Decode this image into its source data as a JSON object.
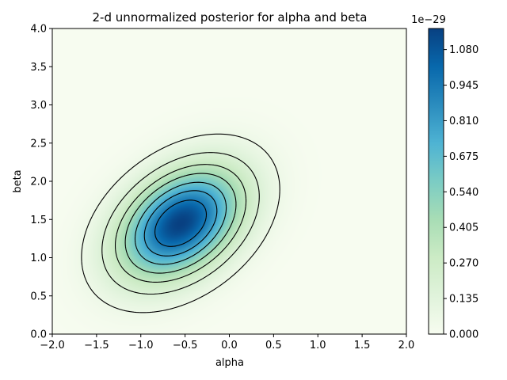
{
  "chart_data": {
    "type": "heatmap",
    "title": "2-d unnormalized posterior for alpha and beta",
    "xlabel": "alpha",
    "ylabel": "beta",
    "xlim": [
      -2.0,
      2.0
    ],
    "ylim": [
      0.0,
      4.0
    ],
    "x_ticks": [
      "−2.0",
      "−1.5",
      "−1.0",
      "−0.5",
      "0.0",
      "0.5",
      "1.0",
      "1.5",
      "2.0"
    ],
    "y_ticks": [
      "0.0",
      "0.5",
      "1.0",
      "1.5",
      "2.0",
      "2.5",
      "3.0",
      "3.5",
      "4.0"
    ],
    "colormap": "GnBu",
    "colormap_stops": [
      "#f7fcf0",
      "#e0f3db",
      "#ccebc5",
      "#a8ddb5",
      "#7bccc4",
      "#4eb3d3",
      "#2b8cbe",
      "#0868ac",
      "#084081"
    ],
    "colorbar": {
      "exponent_label": "1e−29",
      "min": 0.0,
      "max": 1.16,
      "ticks": [
        "0.000",
        "0.135",
        "0.270",
        "0.405",
        "0.540",
        "0.675",
        "0.810",
        "0.945",
        "1.080"
      ]
    },
    "density": {
      "peak_alpha": -0.55,
      "peak_beta": 1.45,
      "sigma_alpha": 0.46,
      "sigma_beta": 0.48,
      "correlation": 0.38,
      "peak_value": 1.16
    },
    "contour_levels": [
      0.06,
      0.18,
      0.32,
      0.46,
      0.62,
      0.78,
      0.95
    ],
    "contour_color": "#000000"
  }
}
